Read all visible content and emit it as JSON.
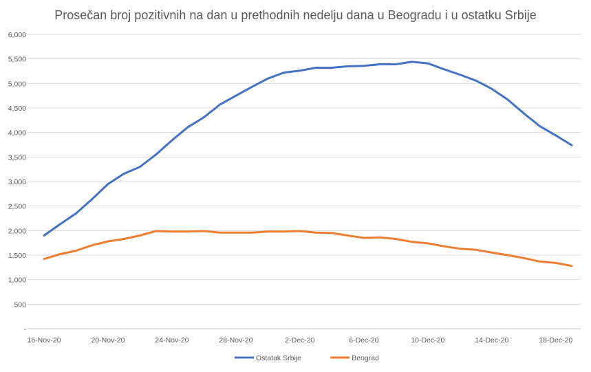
{
  "chart_data": {
    "type": "line",
    "title": "Prosečan broj pozitivnih na dan u prethodnih nedelju dana u Beogradu i u ostatku Srbije",
    "xlabel": "",
    "ylabel": "",
    "ylim": [
      0,
      6000
    ],
    "y_ticks": [
      {
        "value": 0,
        "label": "-"
      },
      {
        "value": 500,
        "label": "500"
      },
      {
        "value": 1000,
        "label": "1,000"
      },
      {
        "value": 1500,
        "label": "1,500"
      },
      {
        "value": 2000,
        "label": "2,000"
      },
      {
        "value": 2500,
        "label": "2,500"
      },
      {
        "value": 3000,
        "label": "3,000"
      },
      {
        "value": 3500,
        "label": "3,500"
      },
      {
        "value": 4000,
        "label": "4,000"
      },
      {
        "value": 4500,
        "label": "4,500"
      },
      {
        "value": 5000,
        "label": "5,000"
      },
      {
        "value": 5500,
        "label": "5,500"
      },
      {
        "value": 6000,
        "label": "6,000"
      }
    ],
    "x": [
      "16-Nov-20",
      "17-Nov-20",
      "18-Nov-20",
      "19-Nov-20",
      "20-Nov-20",
      "21-Nov-20",
      "22-Nov-20",
      "23-Nov-20",
      "24-Nov-20",
      "25-Nov-20",
      "26-Nov-20",
      "27-Nov-20",
      "28-Nov-20",
      "29-Nov-20",
      "30-Nov-20",
      "1-Dec-20",
      "2-Dec-20",
      "3-Dec-20",
      "4-Dec-20",
      "5-Dec-20",
      "6-Dec-20",
      "7-Dec-20",
      "8-Dec-20",
      "9-Dec-20",
      "10-Dec-20",
      "11-Dec-20",
      "12-Dec-20",
      "13-Dec-20",
      "14-Dec-20",
      "15-Dec-20",
      "16-Dec-20",
      "17-Dec-20",
      "18-Dec-20",
      "19-Dec-20"
    ],
    "x_tick_labels": [
      "16-Nov-20",
      "20-Nov-20",
      "24-Nov-20",
      "28-Nov-20",
      "2-Dec-20",
      "6-Dec-20",
      "10-Dec-20",
      "14-Dec-20",
      "18-Dec-20"
    ],
    "grid": true,
    "legend_position": "bottom",
    "series": [
      {
        "name": "Ostatak Srbije",
        "color": "#4472C4",
        "values": [
          1900,
          2130,
          2350,
          2640,
          2950,
          3160,
          3300,
          3550,
          3840,
          4110,
          4310,
          4570,
          4750,
          4930,
          5100,
          5220,
          5260,
          5320,
          5320,
          5350,
          5360,
          5390,
          5390,
          5440,
          5410,
          5290,
          5180,
          5060,
          4890,
          4670,
          4390,
          4130,
          3940,
          3740
        ]
      },
      {
        "name": "Beograd",
        "color": "#ED7D31",
        "values": [
          1420,
          1520,
          1590,
          1700,
          1780,
          1830,
          1900,
          1990,
          1980,
          1980,
          1990,
          1960,
          1960,
          1960,
          1980,
          1980,
          1990,
          1960,
          1950,
          1900,
          1850,
          1860,
          1830,
          1770,
          1740,
          1680,
          1630,
          1610,
          1550,
          1500,
          1440,
          1370,
          1340,
          1280
        ]
      }
    ]
  }
}
